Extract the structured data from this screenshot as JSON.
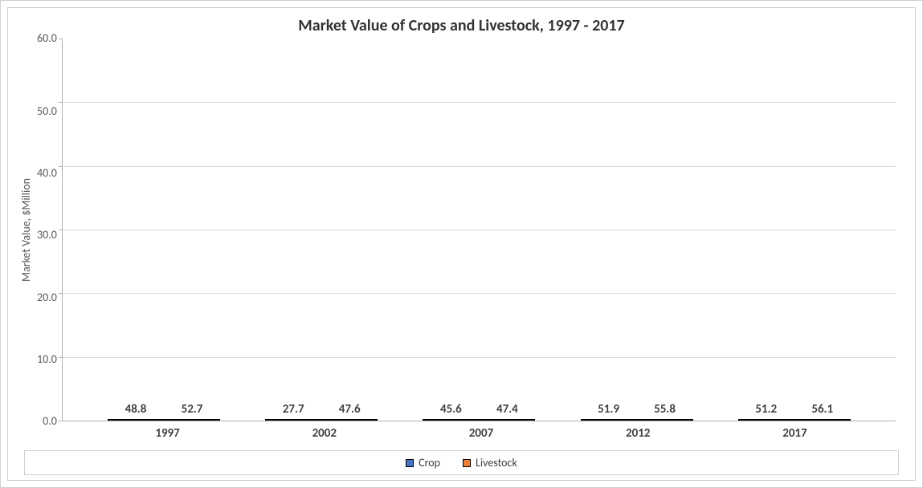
{
  "chart": {
    "type": "bar",
    "title": "Market Value of Crops and Livestock, 1997 - 2017",
    "title_fontsize": 20,
    "title_color": "#333333",
    "ylabel": "Market Value, $Million",
    "ylabel_fontsize": 14,
    "ylabel_color": "#595959",
    "background_color": "#ffffff",
    "border_color": "#d0d0d0",
    "grid_color": "#d9d9d9",
    "axis_color": "#b0b0b0",
    "ylim": [
      0,
      60
    ],
    "ytick_step": 10,
    "yticks": [
      "60.0",
      "50.0",
      "40.0",
      "30.0",
      "20.0",
      "10.0",
      "0.0"
    ],
    "categories": [
      "1997",
      "2002",
      "2007",
      "2012",
      "2017"
    ],
    "series": [
      {
        "name": "Crop",
        "color": "#4472c4",
        "values": [
          48.8,
          27.7,
          45.6,
          51.9,
          51.2
        ]
      },
      {
        "name": "Livestock",
        "color": "#ed7d31",
        "values": [
          52.7,
          47.6,
          47.4,
          55.8,
          56.1
        ]
      }
    ],
    "data_label_fontsize": 15,
    "data_label_color": "#404040",
    "tick_label_fontsize": 14,
    "tick_label_color": "#595959",
    "x_tick_fontsize": 15,
    "legend_fontsize": 14,
    "bar_border_color": "#000000",
    "font_family": "Calibri, Arial, sans-serif"
  }
}
